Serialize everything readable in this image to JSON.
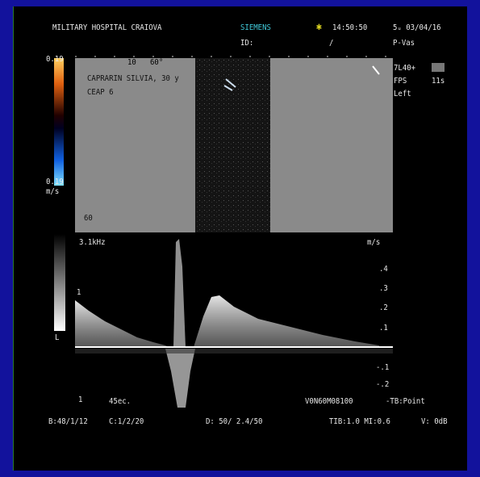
{
  "header": {
    "hospital": "MILITARY HOSPITAL CRAIOVA",
    "brand": "SIEMENS",
    "id": "ID:",
    "time": "14:50:50",
    "date": "5ᵤ 03/04/16",
    "mode": "P-Vas",
    "slash": "/"
  },
  "color_bar": {
    "top": "0.19",
    "bottom": "0.19",
    "unit": "m/s"
  },
  "image": {
    "depth": "10",
    "angle": "60°",
    "patient": "CAPRARIN SILVIA, 30 y",
    "diagnosis": "CEAP 6",
    "gain": "60"
  },
  "probe": {
    "transducer": "7L40+",
    "fps": "FPS",
    "fps_value": "11s",
    "side": "Left"
  },
  "spectrum": {
    "prf": "3.1kHz",
    "unit": "m/s",
    "scale": [
      ".4",
      ".3",
      ".2",
      ".1",
      "-.1",
      "-.2"
    ],
    "gray_mark": "1",
    "gray_label": "L",
    "lower_mark": "1",
    "sweep": "45ec.",
    "settings": "V0N60M08100",
    "trace": "-TB:Point"
  },
  "footer": {
    "b": "B:48/1/12",
    "c": "C:1/2/20",
    "d": "D: 50/ 2.4/50",
    "tib": "TIB:1.0 MI:0.6",
    "v": "V: 0dB"
  }
}
